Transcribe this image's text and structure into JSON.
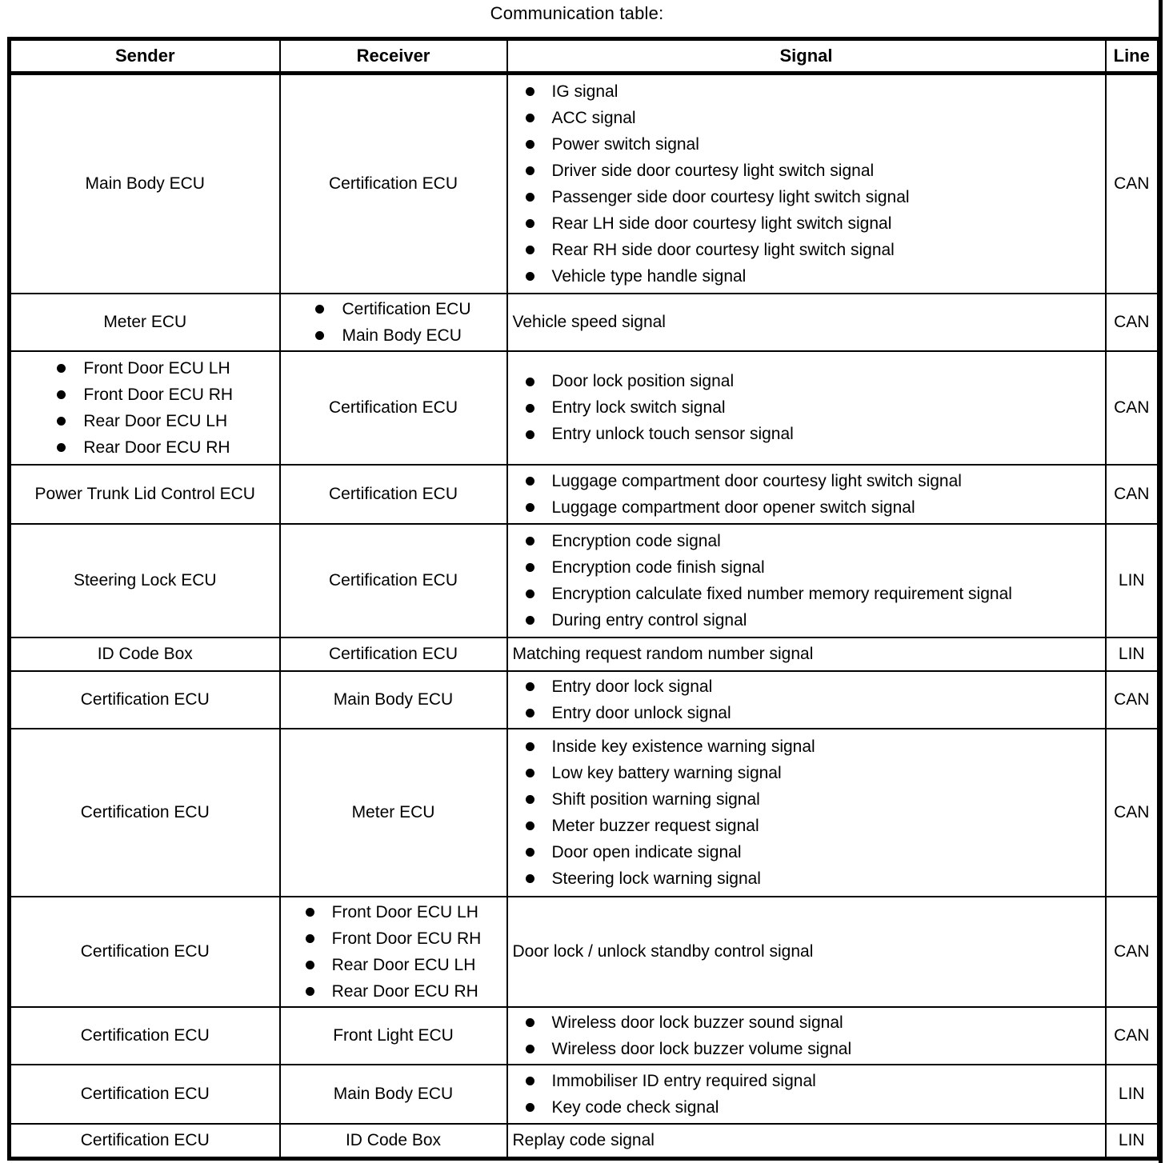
{
  "title": "Communication table:",
  "table": {
    "headers": [
      "Sender",
      "Receiver",
      "Signal",
      "Line"
    ],
    "rows": [
      {
        "sender": {
          "bullets": false,
          "items": [
            "Main Body ECU"
          ]
        },
        "receiver": {
          "bullets": false,
          "items": [
            "Certification ECU"
          ]
        },
        "signal": {
          "bullets": true,
          "items": [
            "IG signal",
            "ACC signal",
            "Power switch signal",
            "Driver side door courtesy light switch signal",
            "Passenger side door courtesy light switch signal",
            "Rear LH side door courtesy light switch signal",
            "Rear RH side door courtesy light switch signal",
            "Vehicle type handle signal"
          ]
        },
        "line": "CAN"
      },
      {
        "sender": {
          "bullets": false,
          "items": [
            "Meter ECU"
          ]
        },
        "receiver": {
          "bullets": true,
          "items": [
            "Certification ECU",
            "Main Body ECU"
          ]
        },
        "signal": {
          "bullets": false,
          "items": [
            "Vehicle speed signal"
          ]
        },
        "line": "CAN"
      },
      {
        "sender": {
          "bullets": true,
          "items": [
            "Front Door ECU LH",
            "Front Door ECU RH",
            "Rear Door ECU LH",
            "Rear Door ECU RH"
          ]
        },
        "receiver": {
          "bullets": false,
          "items": [
            "Certification ECU"
          ]
        },
        "signal": {
          "bullets": true,
          "items": [
            "Door lock position signal",
            "Entry lock switch signal",
            "Entry unlock touch sensor signal"
          ]
        },
        "line": "CAN"
      },
      {
        "sender": {
          "bullets": false,
          "items": [
            "Power Trunk Lid Control ECU"
          ]
        },
        "receiver": {
          "bullets": false,
          "items": [
            "Certification ECU"
          ]
        },
        "signal": {
          "bullets": true,
          "items": [
            "Luggage compartment door courtesy light switch signal",
            "Luggage compartment door opener switch signal"
          ]
        },
        "line": "CAN"
      },
      {
        "sender": {
          "bullets": false,
          "items": [
            "Steering Lock ECU"
          ]
        },
        "receiver": {
          "bullets": false,
          "items": [
            "Certification ECU"
          ]
        },
        "signal": {
          "bullets": true,
          "items": [
            "Encryption code signal",
            "Encryption code finish signal",
            "Encryption calculate fixed number memory requirement signal",
            "During entry control signal"
          ]
        },
        "line": "LIN"
      },
      {
        "sender": {
          "bullets": false,
          "items": [
            "ID Code Box"
          ]
        },
        "receiver": {
          "bullets": false,
          "items": [
            "Certification ECU"
          ]
        },
        "signal": {
          "bullets": false,
          "items": [
            "Matching request random number signal"
          ]
        },
        "line": "LIN"
      },
      {
        "sender": {
          "bullets": false,
          "items": [
            "Certification ECU"
          ]
        },
        "receiver": {
          "bullets": false,
          "items": [
            "Main Body ECU"
          ]
        },
        "signal": {
          "bullets": true,
          "items": [
            "Entry door lock signal",
            "Entry door unlock signal"
          ]
        },
        "line": "CAN"
      },
      {
        "sender": {
          "bullets": false,
          "items": [
            "Certification ECU"
          ]
        },
        "receiver": {
          "bullets": false,
          "items": [
            "Meter ECU"
          ]
        },
        "signal": {
          "bullets": true,
          "items": [
            "Inside key existence warning signal",
            "Low key battery warning signal",
            "Shift position warning signal",
            "Meter buzzer request signal",
            "Door open indicate signal",
            "Steering lock warning signal"
          ]
        },
        "line": "CAN"
      },
      {
        "sender": {
          "bullets": false,
          "items": [
            "Certification ECU"
          ]
        },
        "receiver": {
          "bullets": true,
          "items": [
            "Front Door ECU LH",
            "Front Door ECU RH",
            "Rear Door ECU LH",
            "Rear Door ECU RH"
          ]
        },
        "signal": {
          "bullets": false,
          "items": [
            "Door lock / unlock standby control signal"
          ]
        },
        "line": "CAN"
      },
      {
        "sender": {
          "bullets": false,
          "items": [
            "Certification ECU"
          ]
        },
        "receiver": {
          "bullets": false,
          "items": [
            "Front Light ECU"
          ]
        },
        "signal": {
          "bullets": true,
          "items": [
            "Wireless door lock buzzer sound signal",
            "Wireless door lock buzzer volume signal"
          ]
        },
        "line": "CAN"
      },
      {
        "sender": {
          "bullets": false,
          "items": [
            "Certification ECU"
          ]
        },
        "receiver": {
          "bullets": false,
          "items": [
            "Main Body ECU"
          ]
        },
        "signal": {
          "bullets": true,
          "items": [
            "Immobiliser ID entry required signal",
            "Key code check signal"
          ]
        },
        "line": "LIN"
      },
      {
        "sender": {
          "bullets": false,
          "items": [
            "Certification ECU"
          ]
        },
        "receiver": {
          "bullets": false,
          "items": [
            "ID Code Box"
          ]
        },
        "signal": {
          "bullets": false,
          "items": [
            "Replay code signal"
          ]
        },
        "line": "LIN"
      }
    ]
  }
}
